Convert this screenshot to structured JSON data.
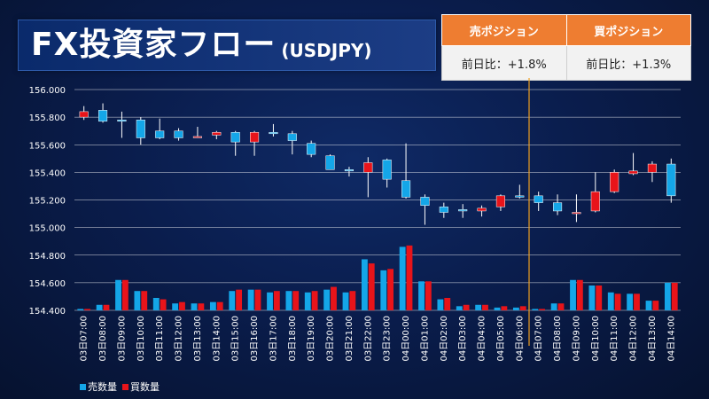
{
  "header": {
    "title": "FX投資家フロー",
    "subtitle": "(USDJPY)"
  },
  "positions": {
    "sell_header": "売ポジション",
    "buy_header": "買ポジション",
    "sell_value": "前日比：+1.8%",
    "buy_value": "前日比：+1.3%"
  },
  "colors": {
    "sell": "#14a6e8",
    "buy": "#e8141a",
    "grid": "#ffffff",
    "marker_line": "#f0a020"
  },
  "chart_data": {
    "type": "candlestick",
    "y_ticks": [
      "156.000",
      "155.800",
      "155.600",
      "155.400",
      "155.200",
      "155.000",
      "154.800",
      "154.600",
      "154.400"
    ],
    "ylim": [
      154.4,
      156.0
    ],
    "categories": [
      "03日07:00",
      "03日08:00",
      "03日09:00",
      "03日10:00",
      "03日11:00",
      "03日12:00",
      "03日13:00",
      "03日14:00",
      "03日15:00",
      "03日16:00",
      "03日17:00",
      "03日18:00",
      "03日19:00",
      "03日20:00",
      "03日21:00",
      "03日22:00",
      "03日23:00",
      "04日00:00",
      "04日01:00",
      "04日02:00",
      "04日03:00",
      "04日04:00",
      "04日05:00",
      "04日06:00",
      "04日07:00",
      "04日08:00",
      "04日09:00",
      "04日10:00",
      "04日11:00",
      "04日12:00",
      "04日13:00",
      "04日14:00"
    ],
    "candles": [
      {
        "o": 155.8,
        "h": 155.88,
        "l": 155.78,
        "c": 155.84
      },
      {
        "o": 155.85,
        "h": 155.9,
        "l": 155.76,
        "c": 155.77
      },
      {
        "o": 155.78,
        "h": 155.84,
        "l": 155.65,
        "c": 155.77
      },
      {
        "o": 155.78,
        "h": 155.8,
        "l": 155.6,
        "c": 155.65
      },
      {
        "o": 155.7,
        "h": 155.79,
        "l": 155.64,
        "c": 155.65
      },
      {
        "o": 155.7,
        "h": 155.72,
        "l": 155.63,
        "c": 155.65
      },
      {
        "o": 155.66,
        "h": 155.73,
        "l": 155.65,
        "c": 155.66
      },
      {
        "o": 155.67,
        "h": 155.7,
        "l": 155.64,
        "c": 155.69
      },
      {
        "o": 155.69,
        "h": 155.7,
        "l": 155.52,
        "c": 155.62
      },
      {
        "o": 155.62,
        "h": 155.7,
        "l": 155.52,
        "c": 155.69
      },
      {
        "o": 155.69,
        "h": 155.75,
        "l": 155.66,
        "c": 155.68
      },
      {
        "o": 155.68,
        "h": 155.7,
        "l": 155.53,
        "c": 155.63
      },
      {
        "o": 155.61,
        "h": 155.63,
        "l": 155.51,
        "c": 155.53
      },
      {
        "o": 155.52,
        "h": 155.53,
        "l": 155.42,
        "c": 155.42
      },
      {
        "o": 155.42,
        "h": 155.44,
        "l": 155.37,
        "c": 155.41
      },
      {
        "o": 155.4,
        "h": 155.51,
        "l": 155.22,
        "c": 155.47
      },
      {
        "o": 155.49,
        "h": 155.5,
        "l": 155.29,
        "c": 155.35
      },
      {
        "o": 155.34,
        "h": 155.61,
        "l": 155.21,
        "c": 155.22
      },
      {
        "o": 155.22,
        "h": 155.24,
        "l": 155.02,
        "c": 155.16
      },
      {
        "o": 155.15,
        "h": 155.18,
        "l": 155.07,
        "c": 155.11
      },
      {
        "o": 155.13,
        "h": 155.17,
        "l": 155.07,
        "c": 155.12
      },
      {
        "o": 155.12,
        "h": 155.16,
        "l": 155.08,
        "c": 155.14
      },
      {
        "o": 155.15,
        "h": 155.24,
        "l": 155.12,
        "c": 155.23
      },
      {
        "o": 155.23,
        "h": 155.31,
        "l": 155.21,
        "c": 155.22
      },
      {
        "o": 155.23,
        "h": 155.26,
        "l": 155.12,
        "c": 155.18
      },
      {
        "o": 155.18,
        "h": 155.24,
        "l": 155.09,
        "c": 155.12
      },
      {
        "o": 155.11,
        "h": 155.24,
        "l": 155.04,
        "c": 155.11
      },
      {
        "o": 155.12,
        "h": 155.4,
        "l": 155.11,
        "c": 155.26
      },
      {
        "o": 155.26,
        "h": 155.42,
        "l": 155.25,
        "c": 155.4
      },
      {
        "o": 155.39,
        "h": 155.54,
        "l": 155.38,
        "c": 155.41
      },
      {
        "o": 155.4,
        "h": 155.48,
        "l": 155.33,
        "c": 155.46
      },
      {
        "o": 155.46,
        "h": 155.5,
        "l": 155.18,
        "c": 155.23
      }
    ],
    "sell_volume": [
      154.41,
      154.44,
      154.62,
      154.54,
      154.49,
      154.45,
      154.45,
      154.46,
      154.54,
      154.55,
      154.53,
      154.54,
      154.53,
      154.55,
      154.53,
      154.77,
      154.69,
      154.86,
      154.61,
      154.48,
      154.43,
      154.44,
      154.42,
      154.42,
      154.41,
      154.45,
      154.62,
      154.58,
      154.53,
      154.52,
      154.47,
      154.6
    ],
    "buy_volume": [
      154.41,
      154.44,
      154.62,
      154.54,
      154.48,
      154.46,
      154.45,
      154.46,
      154.55,
      154.55,
      154.54,
      154.54,
      154.54,
      154.57,
      154.54,
      154.74,
      154.7,
      154.87,
      154.61,
      154.49,
      154.44,
      154.44,
      154.43,
      154.43,
      154.41,
      154.45,
      154.62,
      154.58,
      154.52,
      154.52,
      154.47,
      154.6
    ],
    "marker_after_index": 23,
    "legend": [
      "売数量",
      "買数量"
    ]
  }
}
